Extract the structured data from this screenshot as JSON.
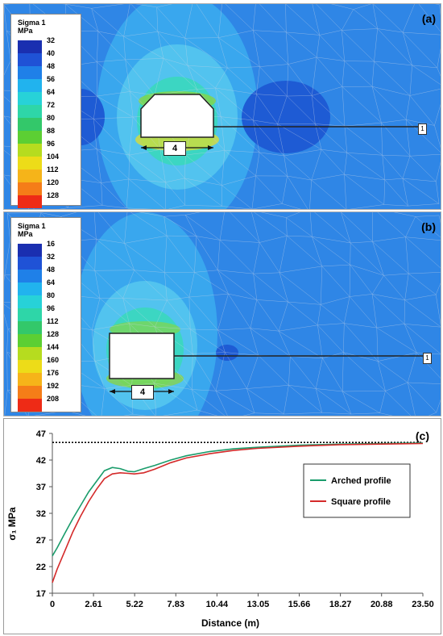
{
  "panel_a": {
    "tag": "(a)",
    "legend_title_1": "Sigma 1",
    "legend_title_2": "MPa",
    "legend_ticks": [
      "32",
      "40",
      "48",
      "56",
      "64",
      "72",
      "80",
      "88",
      "96",
      "104",
      "112",
      "120",
      "128"
    ],
    "legend_colors": [
      "#1a2fb0",
      "#1f52d6",
      "#1f80e8",
      "#21b3ee",
      "#27d2d8",
      "#2ed6a8",
      "#33c86a",
      "#5ccf33",
      "#b6dc1f",
      "#eddc18",
      "#f6b419",
      "#f57d18",
      "#ee2b16"
    ],
    "dimension_label": "4",
    "marker_label": "1"
  },
  "panel_b": {
    "tag": "(b)",
    "legend_title_1": "Sigma 1",
    "legend_title_2": "MPa",
    "legend_ticks": [
      "16",
      "32",
      "48",
      "64",
      "80",
      "96",
      "112",
      "128",
      "144",
      "160",
      "176",
      "192",
      "208"
    ],
    "legend_colors": [
      "#1a2fb0",
      "#1f52d6",
      "#1f80e8",
      "#21b3ee",
      "#27d2d8",
      "#2ed6a8",
      "#33c86a",
      "#5ccf33",
      "#b6dc1f",
      "#eddc18",
      "#f6b419",
      "#f57d18",
      "#ee2b16"
    ],
    "dimension_label": "4",
    "marker_label": "1"
  },
  "chart_data": {
    "type": "line",
    "panel_tag": "(c)",
    "xlabel": "Distance (m)",
    "ylabel": "σ₁ MPa",
    "xlim": [
      0,
      23.5
    ],
    "ylim": [
      17,
      47
    ],
    "x_ticks": [
      "0",
      "2.61",
      "5.22",
      "7.83",
      "10.44",
      "13.05",
      "15.66",
      "18.27",
      "20.88",
      "23.50"
    ],
    "x_tick_values": [
      0,
      2.61,
      5.22,
      7.83,
      10.44,
      13.05,
      15.66,
      18.27,
      20.88,
      23.5
    ],
    "y_ticks": [
      17,
      22,
      27,
      32,
      37,
      42,
      47
    ],
    "reference_line_y": 45.3,
    "legend_position": "right-middle",
    "series": [
      {
        "name": "Arched profile",
        "color": "#1a9c6b",
        "points": [
          [
            0,
            24
          ],
          [
            0.3,
            25.5
          ],
          [
            0.8,
            28.3
          ],
          [
            1.3,
            31
          ],
          [
            1.8,
            33.5
          ],
          [
            2.3,
            36
          ],
          [
            2.8,
            38
          ],
          [
            3.3,
            40
          ],
          [
            3.8,
            40.6
          ],
          [
            4.3,
            40.4
          ],
          [
            4.8,
            39.9
          ],
          [
            5.2,
            39.8
          ],
          [
            5.8,
            40.4
          ],
          [
            6.5,
            41
          ],
          [
            7.5,
            42
          ],
          [
            8.5,
            42.8
          ],
          [
            10,
            43.6
          ],
          [
            11.5,
            44.1
          ],
          [
            13,
            44.4
          ],
          [
            15.7,
            44.8
          ],
          [
            18.3,
            45
          ],
          [
            20.9,
            45.1
          ],
          [
            23.5,
            45.2
          ]
        ]
      },
      {
        "name": "Square profile",
        "color": "#d42a2a",
        "points": [
          [
            0,
            19
          ],
          [
            0.3,
            21.5
          ],
          [
            0.8,
            25
          ],
          [
            1.3,
            28.5
          ],
          [
            1.8,
            31.5
          ],
          [
            2.3,
            34.2
          ],
          [
            2.8,
            36.5
          ],
          [
            3.3,
            38.5
          ],
          [
            3.8,
            39.4
          ],
          [
            4.3,
            39.6
          ],
          [
            4.8,
            39.5
          ],
          [
            5.2,
            39.4
          ],
          [
            5.8,
            39.6
          ],
          [
            6.5,
            40.3
          ],
          [
            7.5,
            41.5
          ],
          [
            8.5,
            42.4
          ],
          [
            10,
            43.2
          ],
          [
            11.5,
            43.8
          ],
          [
            13,
            44.2
          ],
          [
            15.7,
            44.6
          ],
          [
            18.3,
            44.9
          ],
          [
            20.9,
            45
          ],
          [
            23.5,
            45.1
          ]
        ]
      }
    ]
  }
}
